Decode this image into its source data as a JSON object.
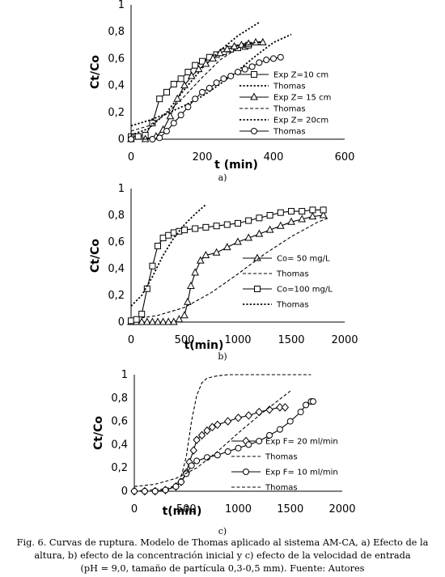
{
  "chart_data": [
    {
      "type": "line",
      "panel_label": "a)",
      "xlabel": "t (min)",
      "ylabel": "Ct/Co",
      "xlim": [
        0,
        600
      ],
      "ylim": [
        0,
        1
      ],
      "xticks": [
        0,
        200,
        400,
        600
      ],
      "yticks": [
        0,
        0.2,
        0.4,
        0.6,
        0.8,
        1
      ],
      "ytick_labels": [
        "0",
        "0,2",
        "0,4",
        "0,6",
        "0,8",
        "1"
      ],
      "legend_position": "bottom-right inside plot",
      "series": [
        {
          "name": "Exp Z=10 cm",
          "marker": "square",
          "style": "solid",
          "points": [
            [
              0,
              0.02
            ],
            [
              20,
              0.02
            ],
            [
              40,
              0.03
            ],
            [
              60,
              0.12
            ],
            [
              80,
              0.3
            ],
            [
              100,
              0.35
            ],
            [
              120,
              0.41
            ],
            [
              140,
              0.45
            ],
            [
              160,
              0.5
            ],
            [
              180,
              0.55
            ],
            [
              200,
              0.58
            ],
            [
              220,
              0.61
            ],
            [
              240,
              0.63
            ],
            [
              260,
              0.65
            ],
            [
              280,
              0.67
            ],
            [
              300,
              0.68
            ],
            [
              320,
              0.69
            ],
            [
              330,
              0.7
            ]
          ]
        },
        {
          "name": "Thomas",
          "style": "dotted",
          "points": [
            [
              0,
              0.03
            ],
            [
              50,
              0.08
            ],
            [
              100,
              0.2
            ],
            [
              150,
              0.37
            ],
            [
              200,
              0.53
            ],
            [
              250,
              0.66
            ],
            [
              300,
              0.77
            ],
            [
              360,
              0.87
            ]
          ]
        },
        {
          "name": "Exp Z= 15 cm",
          "marker": "triangle",
          "style": "solid",
          "points": [
            [
              0,
              0
            ],
            [
              40,
              0
            ],
            [
              70,
              0.02
            ],
            [
              90,
              0.07
            ],
            [
              110,
              0.17
            ],
            [
              130,
              0.3
            ],
            [
              150,
              0.4
            ],
            [
              170,
              0.47
            ],
            [
              190,
              0.52
            ],
            [
              210,
              0.56
            ],
            [
              230,
              0.6
            ],
            [
              250,
              0.64
            ],
            [
              270,
              0.67
            ],
            [
              290,
              0.69
            ],
            [
              310,
              0.7
            ],
            [
              330,
              0.71
            ],
            [
              350,
              0.72
            ],
            [
              370,
              0.72
            ]
          ]
        },
        {
          "name": "Thomas",
          "style": "dashed",
          "points": [
            [
              0,
              0.06
            ],
            [
              50,
              0.1
            ],
            [
              100,
              0.19
            ],
            [
              150,
              0.32
            ],
            [
              200,
              0.46
            ],
            [
              250,
              0.59
            ],
            [
              300,
              0.68
            ],
            [
              350,
              0.72
            ],
            [
              370,
              0.73
            ]
          ]
        },
        {
          "name": "Exp Z= 20cm",
          "marker": "none",
          "style": "dotted",
          "points": [
            [
              0,
              0.1
            ],
            [
              50,
              0.14
            ],
            [
              100,
              0.19
            ],
            [
              150,
              0.25
            ],
            [
              200,
              0.32
            ],
            [
              250,
              0.41
            ],
            [
              300,
              0.51
            ],
            [
              350,
              0.62
            ],
            [
              400,
              0.72
            ],
            [
              450,
              0.78
            ]
          ]
        },
        {
          "name": "Thomas",
          "marker": "circle",
          "style": "solid",
          "points": [
            [
              0,
              0
            ],
            [
              60,
              0
            ],
            [
              80,
              0.01
            ],
            [
              100,
              0.06
            ],
            [
              120,
              0.12
            ],
            [
              140,
              0.18
            ],
            [
              160,
              0.24
            ],
            [
              180,
              0.3
            ],
            [
              200,
              0.35
            ],
            [
              220,
              0.38
            ],
            [
              240,
              0.42
            ],
            [
              260,
              0.45
            ],
            [
              280,
              0.47
            ],
            [
              300,
              0.5
            ],
            [
              320,
              0.52
            ],
            [
              340,
              0.54
            ],
            [
              360,
              0.57
            ],
            [
              380,
              0.59
            ],
            [
              400,
              0.6
            ],
            [
              420,
              0.61
            ]
          ]
        }
      ]
    },
    {
      "type": "line",
      "panel_label": "b)",
      "xlabel": "t(min)",
      "ylabel": "Ct/Co",
      "xlim": [
        0,
        2000
      ],
      "ylim": [
        0,
        1
      ],
      "xticks": [
        0,
        500,
        1000,
        1500,
        2000
      ],
      "yticks": [
        0,
        0.2,
        0.4,
        0.6,
        0.8,
        1
      ],
      "ytick_labels": [
        "0",
        "0,2",
        "0,4",
        "0,6",
        "0,8",
        "1"
      ],
      "legend_position": "bottom-right inside plot",
      "series": [
        {
          "name": "Co= 50 mg/L",
          "marker": "triangle",
          "style": "solid",
          "points": [
            [
              0,
              0
            ],
            [
              50,
              0
            ],
            [
              100,
              0
            ],
            [
              150,
              0
            ],
            [
              200,
              0
            ],
            [
              250,
              0
            ],
            [
              300,
              0
            ],
            [
              350,
              0
            ],
            [
              400,
              0
            ],
            [
              450,
              0.02
            ],
            [
              500,
              0.05
            ],
            [
              530,
              0.15
            ],
            [
              560,
              0.27
            ],
            [
              600,
              0.37
            ],
            [
              650,
              0.46
            ],
            [
              700,
              0.5
            ],
            [
              800,
              0.52
            ],
            [
              900,
              0.56
            ],
            [
              1000,
              0.6
            ],
            [
              1100,
              0.63
            ],
            [
              1200,
              0.66
            ],
            [
              1300,
              0.69
            ],
            [
              1400,
              0.72
            ],
            [
              1500,
              0.75
            ],
            [
              1600,
              0.77
            ],
            [
              1700,
              0.79
            ],
            [
              1800,
              0.8
            ]
          ]
        },
        {
          "name": "Thomas",
          "style": "dashed",
          "points": [
            [
              0,
              0.02
            ],
            [
              250,
              0.05
            ],
            [
              500,
              0.11
            ],
            [
              750,
              0.22
            ],
            [
              1000,
              0.36
            ],
            [
              1250,
              0.51
            ],
            [
              1500,
              0.64
            ],
            [
              1750,
              0.75
            ],
            [
              1850,
              0.78
            ]
          ]
        },
        {
          "name": "Co=100 mg/L",
          "marker": "square",
          "style": "solid",
          "points": [
            [
              0,
              0.01
            ],
            [
              50,
              0.02
            ],
            [
              100,
              0.06
            ],
            [
              150,
              0.25
            ],
            [
              200,
              0.42
            ],
            [
              250,
              0.57
            ],
            [
              300,
              0.63
            ],
            [
              350,
              0.65
            ],
            [
              400,
              0.67
            ],
            [
              450,
              0.68
            ],
            [
              500,
              0.69
            ],
            [
              600,
              0.7
            ],
            [
              700,
              0.71
            ],
            [
              800,
              0.72
            ],
            [
              900,
              0.73
            ],
            [
              1000,
              0.74
            ],
            [
              1100,
              0.76
            ],
            [
              1200,
              0.78
            ],
            [
              1300,
              0.8
            ],
            [
              1400,
              0.82
            ],
            [
              1500,
              0.83
            ],
            [
              1600,
              0.83
            ],
            [
              1700,
              0.84
            ],
            [
              1800,
              0.84
            ]
          ]
        },
        {
          "name": "Thomas",
          "style": "dotted",
          "points": [
            [
              0,
              0.12
            ],
            [
              100,
              0.2
            ],
            [
              200,
              0.34
            ],
            [
              300,
              0.5
            ],
            [
              400,
              0.63
            ],
            [
              500,
              0.73
            ],
            [
              600,
              0.81
            ],
            [
              700,
              0.88
            ]
          ]
        }
      ]
    },
    {
      "type": "line",
      "panel_label": "c)",
      "xlabel": "t(min)",
      "ylabel": "Ct/Co",
      "xlim": [
        0,
        2000
      ],
      "ylim": [
        0,
        1
      ],
      "xticks": [
        0,
        500,
        1000,
        1500,
        2000
      ],
      "yticks": [
        0,
        0.2,
        0.4,
        0.6,
        0.8,
        1
      ],
      "ytick_labels": [
        "0",
        "0,2",
        "0,4",
        "0,6",
        "0,8",
        "1"
      ],
      "legend_position": "bottom-right inside plot",
      "series": [
        {
          "name": "Exp F= 20 ml/min",
          "marker": "diamond",
          "style": "solid",
          "points": [
            [
              0,
              0
            ],
            [
              100,
              0
            ],
            [
              200,
              0
            ],
            [
              300,
              0.01
            ],
            [
              400,
              0.04
            ],
            [
              450,
              0.08
            ],
            [
              500,
              0.16
            ],
            [
              530,
              0.25
            ],
            [
              570,
              0.35
            ],
            [
              600,
              0.44
            ],
            [
              650,
              0.48
            ],
            [
              700,
              0.52
            ],
            [
              750,
              0.55
            ],
            [
              800,
              0.57
            ],
            [
              900,
              0.6
            ],
            [
              1000,
              0.63
            ],
            [
              1100,
              0.65
            ],
            [
              1200,
              0.68
            ],
            [
              1300,
              0.7
            ],
            [
              1400,
              0.72
            ],
            [
              1450,
              0.72
            ]
          ]
        },
        {
          "name": "Thomas",
          "style": "dashed",
          "points": [
            [
              0,
              0
            ],
            [
              300,
              0.02
            ],
            [
              400,
              0.05
            ],
            [
              450,
              0.12
            ],
            [
              500,
              0.3
            ],
            [
              550,
              0.6
            ],
            [
              600,
              0.82
            ],
            [
              650,
              0.93
            ],
            [
              700,
              0.97
            ],
            [
              800,
              0.99
            ],
            [
              900,
              1.0
            ],
            [
              1200,
              1.0
            ],
            [
              1700,
              1.0
            ]
          ]
        },
        {
          "name": "Exp F= 10 ml/min",
          "marker": "circle",
          "style": "solid",
          "points": [
            [
              0,
              0
            ],
            [
              100,
              0
            ],
            [
              200,
              0
            ],
            [
              300,
              0.01
            ],
            [
              400,
              0.04
            ],
            [
              450,
              0.08
            ],
            [
              500,
              0.15
            ],
            [
              550,
              0.22
            ],
            [
              600,
              0.26
            ],
            [
              700,
              0.29
            ],
            [
              800,
              0.31
            ],
            [
              900,
              0.34
            ],
            [
              1000,
              0.37
            ],
            [
              1100,
              0.4
            ],
            [
              1200,
              0.43
            ],
            [
              1300,
              0.48
            ],
            [
              1400,
              0.53
            ],
            [
              1500,
              0.6
            ],
            [
              1600,
              0.68
            ],
            [
              1650,
              0.74
            ],
            [
              1700,
              0.77
            ],
            [
              1720,
              0.77
            ]
          ]
        },
        {
          "name": "Thomas",
          "style": "dashed",
          "points": [
            [
              0,
              0.04
            ],
            [
              200,
              0.06
            ],
            [
              400,
              0.11
            ],
            [
              600,
              0.2
            ],
            [
              800,
              0.34
            ],
            [
              1000,
              0.5
            ],
            [
              1200,
              0.65
            ],
            [
              1400,
              0.79
            ],
            [
              1500,
              0.86
            ]
          ]
        }
      ]
    }
  ],
  "caption": {
    "line1": "Fig. 6. Curvas de ruptura. Modelo de Thomas aplicado al sistema AM-CA, a) Efecto de la",
    "line2": "altura, b) efecto de la concentración inicial y c) efecto de la velocidad de entrada",
    "line3": "(pH = 9,0, tamaño de partícula 0,3-0,5 mm). Fuente: Autores"
  }
}
